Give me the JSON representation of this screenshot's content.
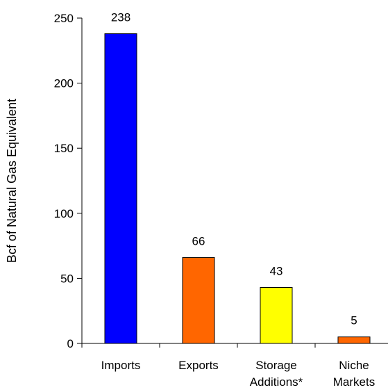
{
  "chart_data": {
    "type": "bar",
    "title": "",
    "xlabel": "",
    "ylabel": "Bcf of Natural Gas Equivalent",
    "ylim": [
      0,
      250
    ],
    "yticks": [
      0,
      50,
      100,
      150,
      200,
      250
    ],
    "grid": false,
    "legend": "none",
    "categories": [
      [
        "Imports"
      ],
      [
        "Exports"
      ],
      [
        "Storage",
        "Additions*"
      ],
      [
        "Niche",
        "Markets"
      ]
    ],
    "values": [
      238,
      66,
      43,
      5
    ],
    "data_labels": [
      "238",
      "66",
      "43",
      "5"
    ],
    "colors": [
      "#0000ff",
      "#ff6600",
      "#ffff00",
      "#ff6600"
    ]
  }
}
